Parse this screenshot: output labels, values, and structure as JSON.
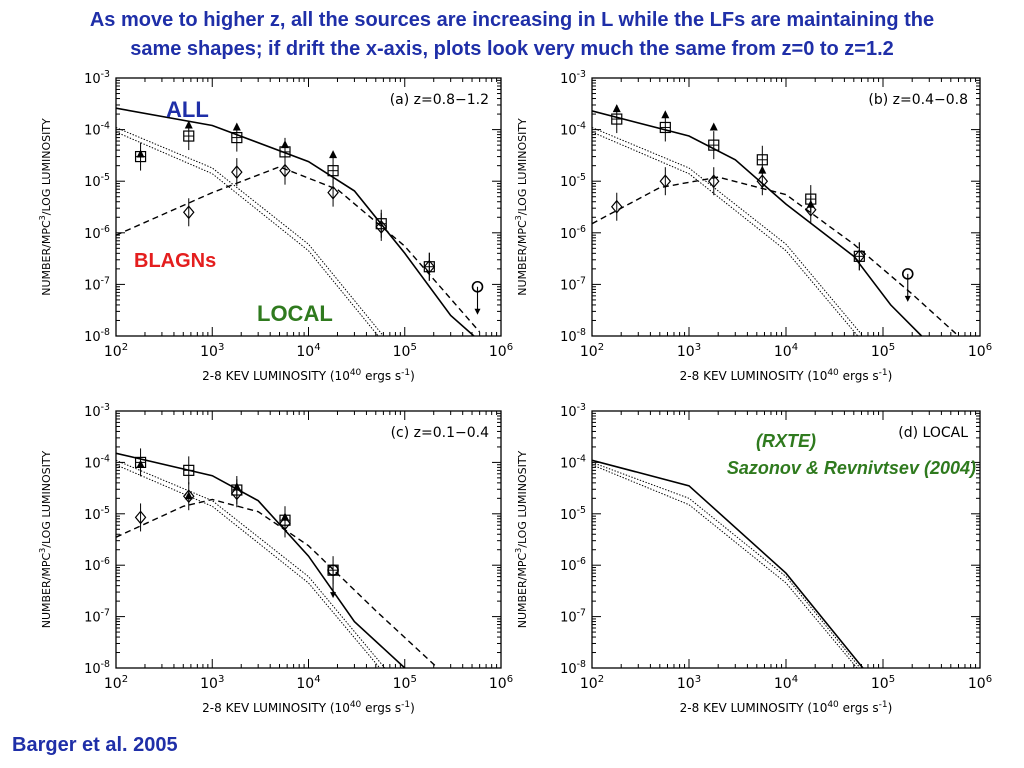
{
  "slide": {
    "headline_line1": "As move to higher z, all the sources are increasing in L while the LFs are maintaining the",
    "headline_line2": "same shapes; if drift the x-axis, plots look very much the same from z=0 to z=1.2",
    "credit": "Barger et al. 2005"
  },
  "colors": {
    "headline": "#1f2fa8",
    "all_label": "#1f2fa8",
    "blagn_label": "#e41e1e",
    "local_label": "#2f7a1e",
    "credit": "#1f2fa8",
    "rxte_label": "#2f7a1e",
    "axes": "#000000"
  },
  "annotations": {
    "all": "ALL",
    "blagns": "BLAGNs",
    "local": "LOCAL",
    "rxte": "(RXTE)",
    "reference": "Sazonov & Revnivtsev (2004)"
  },
  "icons": {
    "total_marker": "open-square",
    "blagn_marker": "open-diamond",
    "filled_marker": "filled-triangle",
    "limit_marker": "open-circle"
  },
  "chart_data": [
    {
      "id": "a",
      "type": "scatter",
      "title": "(a) z=0.8−1.2",
      "xlabel": "2-8 KEV LUMINOSITY (10^40 ergs s^-1)",
      "ylabel": "NUMBER/MPC^3/LOG LUMINOSITY",
      "x_scale": "log",
      "y_scale": "log",
      "xlim": [
        100,
        1000000
      ],
      "ylim": [
        1e-08,
        0.001
      ],
      "x_ticks": [
        "10^2",
        "10^3",
        "10^4",
        "10^5",
        "10^6"
      ],
      "y_ticks": [
        "10^-8",
        "10^-7",
        "10^-6",
        "10^-5",
        "10^-4",
        "10^-3"
      ],
      "series": [
        {
          "name": "",
          "marker": "open-square",
          "x": [
            180,
            570,
            1800,
            5700,
            18000,
            57000,
            180000
          ],
          "y": [
            3e-05,
            7.5e-05,
            7e-05,
            3.7e-05,
            1.6e-05,
            1.5e-06,
            2.2e-07
          ]
        },
        {
          "name": "",
          "marker": "open-diamond",
          "x": [
            570,
            1800,
            5700,
            18000,
            57000,
            180000
          ],
          "y": [
            2.5e-06,
            1.5e-05,
            1.6e-05,
            6e-06,
            1.3e-06,
            2.2e-07
          ]
        },
        {
          "name": "",
          "marker": "filled-triangle",
          "x": [
            180,
            570,
            1800,
            5700,
            18000
          ],
          "y": [
            3.3e-05,
            0.00012,
            0.00011,
            5e-05,
            3.2e-05
          ]
        },
        {
          "name": "",
          "marker": "open-circle",
          "x": [
            570000
          ],
          "y": [
            9e-08
          ]
        }
      ],
      "curves": {
        "all_model": {
          "x": [
            100,
            1000,
            10000,
            30000,
            100000,
            300000,
            600000
          ],
          "y": [
            0.00026,
            0.00012,
            2.4e-05,
            6.5e-06,
            4e-07,
            2.5e-08,
            8e-09
          ]
        },
        "blagn_model": {
          "x": [
            100,
            1000,
            5000,
            20000,
            100000,
            600000
          ],
          "y": [
            9e-07,
            6e-06,
            1.9e-05,
            6.9e-06,
            5.5e-07,
            1.2e-08
          ]
        },
        "local_upper": {
          "x": [
            100,
            1000,
            10000,
            60000
          ],
          "y": [
            0.00011,
            1.8e-05,
            6e-07,
            1e-08
          ]
        },
        "local_lower": {
          "x": [
            100,
            1000,
            10000,
            53000
          ],
          "y": [
            9e-05,
            1.4e-05,
            4.5e-07,
            1e-08
          ]
        }
      }
    },
    {
      "id": "b",
      "type": "scatter",
      "title": "(b) z=0.4−0.8",
      "xlabel": "2-8 KEV LUMINOSITY (10^40 ergs s^-1)",
      "ylabel": "NUMBER/MPC^3/LOG LUMINOSITY",
      "x_scale": "log",
      "y_scale": "log",
      "xlim": [
        100,
        1000000
      ],
      "ylim": [
        1e-08,
        0.001
      ],
      "x_ticks": [
        "10^2",
        "10^3",
        "10^4",
        "10^5",
        "10^6"
      ],
      "y_ticks": [
        "10^-8",
        "10^-7",
        "10^-6",
        "10^-5",
        "10^-4",
        "10^-3"
      ],
      "series": [
        {
          "name": "",
          "marker": "open-square",
          "x": [
            180,
            570,
            1800,
            5700,
            18000,
            57000
          ],
          "y": [
            0.00016,
            0.00011,
            5e-05,
            2.6e-05,
            4.5e-06,
            3.5e-07
          ]
        },
        {
          "name": "",
          "marker": "open-diamond",
          "x": [
            180,
            570,
            1800,
            5700,
            18000,
            57000
          ],
          "y": [
            3.2e-06,
            1e-05,
            1e-05,
            1e-05,
            2.8e-06,
            3.5e-07
          ]
        },
        {
          "name": "",
          "marker": "filled-triangle",
          "x": [
            180,
            570,
            1800,
            5700,
            18000
          ],
          "y": [
            0.00025,
            0.00019,
            0.00011,
            1.6e-05,
            3.5e-06
          ]
        },
        {
          "name": "",
          "marker": "open-circle",
          "x": [
            180000
          ],
          "y": [
            1.6e-07
          ]
        }
      ],
      "curves": {
        "all_model": {
          "x": [
            100,
            1000,
            3000,
            10000,
            50000,
            120000,
            250000
          ],
          "y": [
            0.00023,
            7.5e-05,
            2.6e-05,
            3.6e-06,
            3.5e-07,
            4e-08,
            1e-08
          ]
        },
        "blagn_model": {
          "x": [
            100,
            500,
            2000,
            10000,
            50000,
            200000,
            600000
          ],
          "y": [
            1.5e-06,
            7.5e-06,
            1.2e-05,
            5.5e-06,
            6e-07,
            6.5e-08,
            1e-08
          ]
        },
        "local_upper": {
          "x": [
            100,
            1000,
            10000,
            62000
          ],
          "y": [
            0.00011,
            1.8e-05,
            6e-07,
            1e-08
          ]
        },
        "local_lower": {
          "x": [
            100,
            1000,
            10000,
            55000
          ],
          "y": [
            9e-05,
            1.4e-05,
            4.5e-07,
            1e-08
          ]
        }
      }
    },
    {
      "id": "c",
      "type": "scatter",
      "title": "(c) z=0.1−0.4",
      "xlabel": "2-8 KEV LUMINOSITY (10^40 ergs s^-1)",
      "ylabel": "NUMBER/MPC^3/LOG LUMINOSITY",
      "x_scale": "log",
      "y_scale": "log",
      "xlim": [
        100,
        1000000
      ],
      "ylim": [
        1e-08,
        0.001
      ],
      "x_ticks": [
        "10^2",
        "10^3",
        "10^4",
        "10^5",
        "10^6"
      ],
      "y_ticks": [
        "10^-8",
        "10^-7",
        "10^-6",
        "10^-5",
        "10^-4",
        "10^-3"
      ],
      "series": [
        {
          "name": "",
          "marker": "open-square",
          "x": [
            180,
            570,
            1800,
            5700,
            18000
          ],
          "y": [
            0.0001,
            7e-05,
            2.9e-05,
            7.5e-06,
            8e-07
          ]
        },
        {
          "name": "",
          "marker": "open-diamond",
          "x": [
            180,
            570,
            1800,
            5700
          ],
          "y": [
            8.5e-06,
            2.2e-05,
            2.5e-05,
            6.5e-06
          ]
        },
        {
          "name": "",
          "marker": "filled-triangle",
          "x": [
            180,
            570,
            1800,
            5700
          ],
          "y": [
            9e-05,
            2.2e-05,
            3.3e-05,
            8.5e-06
          ]
        },
        {
          "name": "",
          "marker": "open-circle",
          "x": [
            18000
          ],
          "y": [
            8e-07
          ]
        }
      ],
      "curves": {
        "all_model": {
          "x": [
            100,
            1000,
            3000,
            10000,
            30000,
            100000
          ],
          "y": [
            0.00015,
            5.5e-05,
            1.8e-05,
            1.5e-06,
            8e-08,
            1e-08
          ]
        },
        "blagn_model": {
          "x": [
            100,
            500,
            1000,
            3000,
            10000,
            50000,
            220000
          ],
          "y": [
            3.5e-06,
            1.4e-05,
            1.9e-05,
            1.1e-05,
            2.4e-06,
            1.3e-07,
            1e-08
          ]
        },
        "local_upper": {
          "x": [
            100,
            1000,
            10000,
            62000
          ],
          "y": [
            0.00011,
            1.8e-05,
            6e-07,
            1e-08
          ]
        },
        "local_lower": {
          "x": [
            100,
            1000,
            10000,
            55000
          ],
          "y": [
            9e-05,
            1.4e-05,
            4.5e-07,
            1e-08
          ]
        }
      }
    },
    {
      "id": "d",
      "type": "line",
      "title": "(d) LOCAL",
      "xlabel": "2-8 KEV LUMINOSITY (10^40 ergs s^-1)",
      "ylabel": "NUMBER/MPC^3/LOG LUMINOSITY",
      "x_scale": "log",
      "y_scale": "log",
      "xlim": [
        100,
        1000000
      ],
      "ylim": [
        1e-08,
        0.001
      ],
      "x_ticks": [
        "10^2",
        "10^3",
        "10^4",
        "10^5",
        "10^6"
      ],
      "y_ticks": [
        "10^-8",
        "10^-7",
        "10^-6",
        "10^-5",
        "10^-4",
        "10^-3"
      ],
      "series": [],
      "curves": {
        "all_model": {
          "x": [
            100,
            1000,
            10000,
            62000
          ],
          "y": [
            0.00011,
            3.5e-05,
            7e-07,
            1e-08
          ]
        },
        "local_upper": {
          "x": [
            100,
            1000,
            10000,
            58000
          ],
          "y": [
            0.0001,
            2e-05,
            6e-07,
            1e-08
          ]
        },
        "local_lower": {
          "x": [
            100,
            1000,
            10000,
            54000
          ],
          "y": [
            9e-05,
            1.5e-05,
            4.5e-07,
            1e-08
          ]
        }
      }
    }
  ]
}
